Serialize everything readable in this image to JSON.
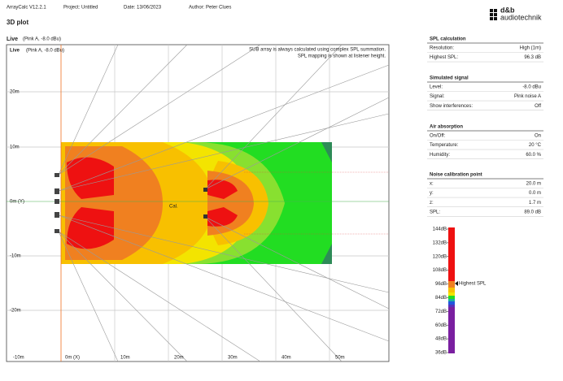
{
  "header": {
    "app": "ArrayCalc V12.2.1",
    "project": "Project: Untitled",
    "date": "Date: 13/06/2023",
    "author": "Author: Peter Clues",
    "logo_top": "d&b",
    "logo_bottom": "audiotechnik",
    "title": "3D plot"
  },
  "plot": {
    "title": "Live",
    "subtitle": "(Pink A, -8.0 dBu)",
    "inner_title": "Live",
    "inner_subtitle": "(Pink A, -8.0 dBu)",
    "notes": [
      "SUB array is always calculated using complex SPL summation.",
      "SPL mapping is shown at listener height."
    ],
    "y_labels": [
      "20m",
      "10m",
      "0m (Y)",
      "-10m",
      "-20m"
    ],
    "x_labels": [
      "-10m",
      "0m (X)",
      "10m",
      "20m",
      "30m",
      "40m",
      "50m"
    ],
    "cal_label": "Cal."
  },
  "panels": [
    {
      "title": "SPL calculation",
      "rows": [
        [
          "Resolution:",
          "High (1m)"
        ],
        [
          "Highest SPL:",
          "96.3 dB"
        ]
      ]
    },
    {
      "title": "Simulated signal",
      "rows": [
        [
          "Level:",
          "-8.0 dBu"
        ],
        [
          "Signal:",
          "Pink noise A"
        ],
        [
          "Show interferences:",
          "Off"
        ]
      ]
    },
    {
      "title": "Air absorption",
      "rows": [
        [
          "On/Off:",
          "On"
        ],
        [
          "Temperature:",
          "20 °C"
        ],
        [
          "Humidity:",
          "60.0 %"
        ]
      ]
    },
    {
      "title": "Noise calibration point",
      "rows": [
        [
          "x:",
          "20.0 m"
        ],
        [
          "y:",
          "0.0 m"
        ],
        [
          "z:",
          "1.7 m"
        ],
        [
          "SPL:",
          "89.0 dB"
        ]
      ]
    }
  ],
  "scale": {
    "labels": [
      "144dB",
      "132dB",
      "120dB",
      "108dB",
      "96dB",
      "84dB",
      "72dB",
      "60dB",
      "48dB",
      "36dB"
    ],
    "marker": "Highest SPL"
  }
}
